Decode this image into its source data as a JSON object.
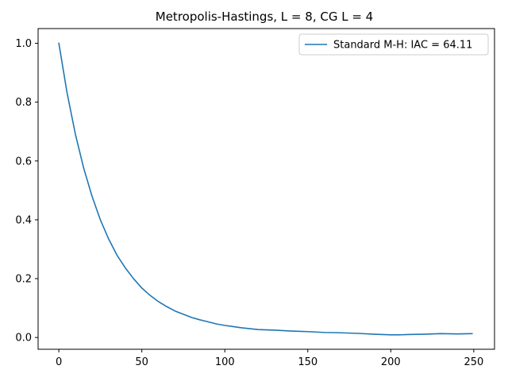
{
  "chart_data": {
    "type": "line",
    "title": "Metropolis-Hastings, L = 8, CG L = 4",
    "xlabel": "",
    "ylabel": "",
    "xlim": [
      -12.5,
      262.5
    ],
    "ylim": [
      -0.04,
      1.05
    ],
    "x_ticks": [
      0,
      50,
      100,
      150,
      200,
      250
    ],
    "x_tick_labels": [
      "0",
      "50",
      "100",
      "150",
      "200",
      "250"
    ],
    "y_ticks": [
      0.0,
      0.2,
      0.4,
      0.6,
      0.8,
      1.0
    ],
    "y_tick_labels": [
      "0.0",
      "0.2",
      "0.4",
      "0.6",
      "0.8",
      "1.0"
    ],
    "grid": false,
    "legend_position": "upper-right",
    "series": [
      {
        "name": "Standard M-H: IAC = 64.11",
        "color": "#1f77b4",
        "x": [
          0,
          5,
          10,
          15,
          20,
          25,
          30,
          35,
          40,
          45,
          50,
          55,
          60,
          65,
          70,
          75,
          80,
          85,
          90,
          95,
          100,
          105,
          110,
          115,
          120,
          125,
          130,
          140,
          150,
          160,
          170,
          180,
          190,
          200,
          205,
          210,
          220,
          230,
          240,
          249
        ],
        "y": [
          1.0,
          0.83,
          0.69,
          0.575,
          0.48,
          0.4,
          0.335,
          0.28,
          0.237,
          0.2,
          0.168,
          0.143,
          0.122,
          0.105,
          0.09,
          0.079,
          0.068,
          0.06,
          0.053,
          0.046,
          0.041,
          0.037,
          0.033,
          0.03,
          0.027,
          0.026,
          0.025,
          0.022,
          0.02,
          0.017,
          0.016,
          0.014,
          0.011,
          0.009,
          0.009,
          0.01,
          0.011,
          0.013,
          0.012,
          0.013
        ]
      }
    ]
  }
}
